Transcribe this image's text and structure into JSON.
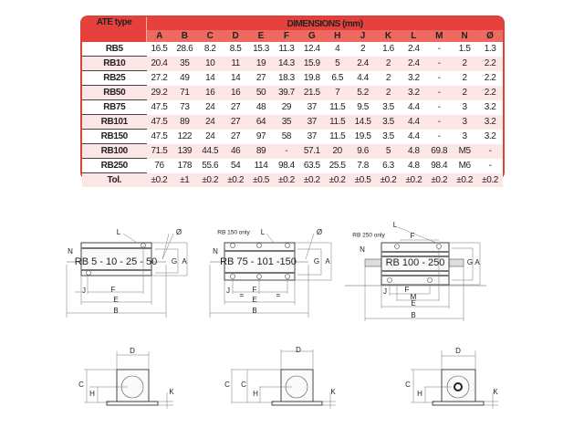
{
  "table": {
    "type_header": "ATE type",
    "dimensions_header": "DIMENSIONS (mm)",
    "columns": [
      "A",
      "B",
      "C",
      "D",
      "E",
      "F",
      "G",
      "H",
      "J",
      "K",
      "L",
      "M",
      "N",
      "Ø"
    ],
    "rows": [
      {
        "type": "RB5",
        "values": [
          "16.5",
          "28.6",
          "8.2",
          "8.5",
          "15.3",
          "11.3",
          "12.4",
          "4",
          "2",
          "1.6",
          "2.4",
          "-",
          "1.5",
          "1.3"
        ]
      },
      {
        "type": "RB10",
        "values": [
          "20.4",
          "35",
          "10",
          "11",
          "19",
          "14.3",
          "15.9",
          "5",
          "2.4",
          "2",
          "2.4",
          "-",
          "2",
          "2.2"
        ]
      },
      {
        "type": "RB25",
        "values": [
          "27.2",
          "49",
          "14",
          "14",
          "27",
          "18.3",
          "19.8",
          "6.5",
          "4.4",
          "2",
          "3.2",
          "-",
          "2",
          "2.2"
        ]
      },
      {
        "type": "RB50",
        "values": [
          "29.2",
          "71",
          "16",
          "16",
          "50",
          "39.7",
          "21.5",
          "7",
          "5.2",
          "2",
          "3.2",
          "-",
          "2",
          "2.2"
        ]
      },
      {
        "type": "RB75",
        "values": [
          "47.5",
          "73",
          "24",
          "27",
          "48",
          "29",
          "37",
          "11.5",
          "9.5",
          "3.5",
          "4.4",
          "-",
          "3",
          "3.2"
        ]
      },
      {
        "type": "RB101",
        "values": [
          "47.5",
          "89",
          "24",
          "27",
          "64",
          "35",
          "37",
          "11.5",
          "14.5",
          "3.5",
          "4.4",
          "-",
          "3",
          "3.2"
        ]
      },
      {
        "type": "RB150",
        "values": [
          "47.5",
          "122",
          "24",
          "27",
          "97",
          "58",
          "37",
          "11.5",
          "19.5",
          "3.5",
          "4.4",
          "-",
          "3",
          "3.2"
        ]
      },
      {
        "type": "RB100",
        "values": [
          "71.5",
          "139",
          "44.5",
          "46",
          "89",
          "-",
          "57.1",
          "20",
          "9.6",
          "5",
          "4.8",
          "69.8",
          "M5",
          "-"
        ]
      },
      {
        "type": "RB250",
        "values": [
          "76",
          "178",
          "55.6",
          "54",
          "114",
          "98.4",
          "63.5",
          "25.5",
          "7.8",
          "6.3",
          "4.8",
          "98.4",
          "M6",
          "-"
        ]
      },
      {
        "type": "Tol.",
        "values": [
          "±0.2",
          "±1",
          "±0.2",
          "±0.2",
          "±0.5",
          "±0.2",
          "±0.2",
          "±0.2",
          "±0.5",
          "±0.2",
          "±0.2",
          "±0.2",
          "±0.2",
          "±0.2"
        ]
      }
    ]
  },
  "drawings": {
    "d1": {
      "model": "RB 5 - 10 - 25 - 50",
      "L": "L",
      "O": "Ø",
      "N": "N",
      "G": "G",
      "A": "A",
      "J": "J",
      "F": "F",
      "E": "E",
      "B": "B"
    },
    "d2": {
      "model": "RB 75 - 101 -150",
      "note": "RB 150 only",
      "L": "L",
      "O": "Ø",
      "N": "N",
      "G": "G",
      "A": "A",
      "J": "J",
      "eq": "=",
      "F": "F",
      "E": "E",
      "B": "B"
    },
    "d3": {
      "model": "RB 100 - 250",
      "note": "RB 250 only",
      "L": "L",
      "Ftop": "F",
      "N": "N",
      "G": "G",
      "A": "A",
      "J": "J",
      "F": "F",
      "M": "M",
      "E": "E",
      "B": "B"
    },
    "s1": {
      "D": "D",
      "C": "C",
      "H": "H",
      "K": "K"
    },
    "s2": {
      "D": "D",
      "C": "C",
      "H": "H",
      "K": "K"
    },
    "s3": {
      "D": "D",
      "C": "C",
      "H": "H",
      "K": "K"
    }
  },
  "colors": {
    "header_red": "#e5403c",
    "subheader_red": "#ee6a60",
    "row_pink": "#fde6e6"
  }
}
